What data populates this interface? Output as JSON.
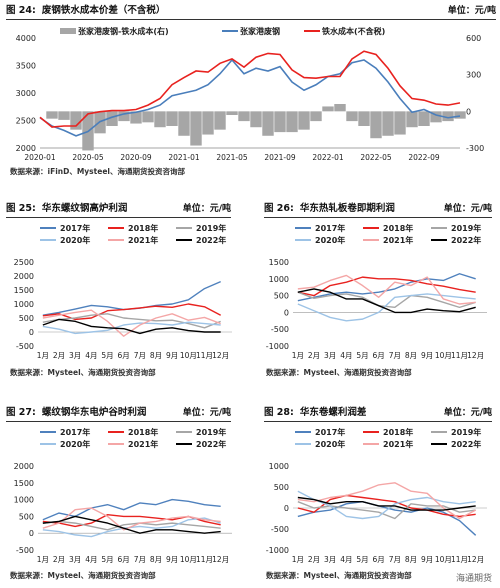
{
  "figures": [
    {
      "num": "图 24:",
      "title": "废钢铁水成本价差（不含税）",
      "unit": "单位：元/吨",
      "source": "数据来源：iFinD、Mysteel、海通期货投资咨询部"
    },
    {
      "num": "图 25:",
      "title": "华东螺纹钢高炉利润",
      "unit": "单位：元/吨",
      "source": "数据来源：Mysteel、海通期货投资咨询部"
    },
    {
      "num": "图 26:",
      "title": "华东热轧板卷即期利润",
      "unit": "单位：元/吨",
      "source": "数据来源：Mysteel、海通期货投资咨询部"
    },
    {
      "num": "图 27:",
      "title": "螺纹钢华东电炉谷时利润",
      "unit": "单位：元/吨",
      "source": "数据来源：Mysteel、海通期货投资咨询部"
    },
    {
      "num": "图 28:",
      "title": "华东卷螺利润差",
      "unit": "单位：元/吨",
      "source": "数据来源：Mysteel、海通期货投资咨询部"
    }
  ],
  "watermark": "海通期货",
  "chart_data": [
    {
      "type": "line",
      "x": [
        "2020-01",
        "2020-02",
        "2020-03",
        "2020-04",
        "2020-05",
        "2020-06",
        "2020-07",
        "2020-08",
        "2020-09",
        "2020-10",
        "2020-11",
        "2020-12",
        "2021-01",
        "2021-02",
        "2021-03",
        "2021-04",
        "2021-05",
        "2021-06",
        "2021-07",
        "2021-08",
        "2021-09",
        "2021-10",
        "2021-11",
        "2021-12",
        "2022-01",
        "2022-02",
        "2022-03",
        "2022-04",
        "2022-05",
        "2022-06",
        "2022-07",
        "2022-08",
        "2022-09",
        "2022-10",
        "2022-11",
        "2022-12"
      ],
      "x_ticks": [
        "2020-01",
        "2020-05",
        "2020-09",
        "2021-01",
        "2021-05",
        "2021-09",
        "2022-01",
        "2022-05",
        "2022-09"
      ],
      "series": [
        {
          "name": "张家港废钢-铁水成本(右)",
          "axis": "right",
          "kind": "area",
          "color": "#a6a6a6",
          "values": [
            0,
            -60,
            -70,
            -150,
            -320,
            -180,
            -120,
            -80,
            -100,
            -90,
            -130,
            -120,
            -200,
            -280,
            -190,
            -150,
            -30,
            -80,
            -130,
            -200,
            -170,
            -170,
            -150,
            -80,
            40,
            60,
            -80,
            -120,
            -220,
            -200,
            -190,
            -130,
            -120,
            -90,
            -80,
            -60
          ]
        },
        {
          "name": "张家港废钢",
          "axis": "left",
          "color": "#4a7ebb",
          "values": [
            2550,
            2400,
            2320,
            2220,
            2300,
            2480,
            2560,
            2620,
            2650,
            2700,
            2780,
            2950,
            3000,
            3050,
            3150,
            3350,
            3600,
            3350,
            3450,
            3400,
            3480,
            3200,
            3050,
            3150,
            3300,
            3350,
            3550,
            3600,
            3450,
            3200,
            2900,
            2650,
            2700,
            2600,
            2550,
            2580
          ]
        },
        {
          "name": "铁水成本(不含税)",
          "axis": "right_line",
          "color": "#e8221f",
          "values": [
            2560,
            2380,
            2400,
            2400,
            2620,
            2660,
            2680,
            2680,
            2700,
            2780,
            2900,
            3150,
            3280,
            3400,
            3380,
            3540,
            3620,
            3470,
            3650,
            3720,
            3700,
            3420,
            3280,
            3270,
            3300,
            3300,
            3620,
            3760,
            3700,
            3450,
            3130,
            2900,
            2870,
            2800,
            2780,
            2820
          ]
        }
      ],
      "ylim_left": [
        2000,
        4000
      ],
      "left_ticks": [
        "2000",
        "2500",
        "3000",
        "3500",
        "4000"
      ],
      "ylim_right": [
        -300,
        600
      ],
      "right_ticks": [
        "-300",
        "0",
        "300",
        "600"
      ]
    },
    {
      "type": "line",
      "categories": [
        "1月",
        "2月",
        "3月",
        "4月",
        "5月",
        "6月",
        "7月",
        "8月",
        "9月",
        "10月",
        "11月",
        "12月"
      ],
      "ylim": [
        -500,
        2500
      ],
      "y_ticks": [
        "-500",
        "0",
        "500",
        "1000",
        "1500",
        "2000",
        "2500"
      ],
      "series": [
        {
          "name": "2017年",
          "color": "#4f81bd",
          "values": [
            600,
            700,
            820,
            950,
            900,
            800,
            850,
            950,
            1000,
            1150,
            1550,
            1800
          ]
        },
        {
          "name": "2018年",
          "color": "#e8221f",
          "values": [
            580,
            650,
            450,
            500,
            760,
            800,
            860,
            920,
            880,
            1000,
            900,
            600
          ]
        },
        {
          "name": "2019年",
          "color": "#a6a6a6",
          "values": [
            350,
            450,
            500,
            600,
            650,
            500,
            450,
            400,
            420,
            300,
            150,
            380
          ]
        },
        {
          "name": "2020年",
          "color": "#9dc3e6",
          "values": [
            200,
            100,
            -50,
            0,
            60,
            250,
            320,
            300,
            250,
            350,
            300,
            250
          ]
        },
        {
          "name": "2021年",
          "color": "#f4a6a6",
          "values": [
            500,
            600,
            700,
            780,
            380,
            -150,
            250,
            500,
            650,
            420,
            520,
            300
          ]
        },
        {
          "name": "2022年",
          "color": "#000000",
          "values": [
            250,
            450,
            380,
            200,
            150,
            120,
            -50,
            100,
            150,
            50,
            0,
            0
          ]
        }
      ]
    },
    {
      "type": "line",
      "categories": [
        "1月",
        "2月",
        "3月",
        "4月",
        "5月",
        "6月",
        "7月",
        "8月",
        "9月",
        "10月",
        "11月",
        "12月"
      ],
      "ylim": [
        -1000,
        1500
      ],
      "y_ticks": [
        "-1000",
        "-500",
        "0",
        "500",
        "1000",
        "1500"
      ],
      "series": [
        {
          "name": "2017年",
          "color": "#4f81bd",
          "values": [
            350,
            450,
            550,
            600,
            550,
            600,
            700,
            900,
            1000,
            950,
            1150,
            1000
          ]
        },
        {
          "name": "2018年",
          "color": "#e8221f",
          "values": [
            600,
            500,
            800,
            900,
            1050,
            1000,
            1000,
            950,
            850,
            780,
            680,
            600
          ]
        },
        {
          "name": "2019年",
          "color": "#a6a6a6",
          "values": [
            600,
            420,
            500,
            550,
            450,
            200,
            150,
            500,
            450,
            300,
            150,
            300
          ]
        },
        {
          "name": "2020年",
          "color": "#9dc3e6",
          "values": [
            250,
            50,
            -150,
            -250,
            -200,
            0,
            450,
            500,
            550,
            500,
            450,
            400
          ]
        },
        {
          "name": "2021年",
          "color": "#f4a6a6",
          "values": [
            700,
            750,
            950,
            1100,
            800,
            450,
            900,
            800,
            1050,
            400,
            250,
            300
          ]
        },
        {
          "name": "2022年",
          "color": "#000000",
          "values": [
            600,
            700,
            600,
            400,
            400,
            200,
            0,
            0,
            100,
            50,
            20,
            150
          ]
        }
      ]
    },
    {
      "type": "line",
      "categories": [
        "1月",
        "2月",
        "3月",
        "4月",
        "5月",
        "6月",
        "7月",
        "8月",
        "9月",
        "10月",
        "11月",
        "12月"
      ],
      "ylim": [
        -500,
        2000
      ],
      "y_ticks": [
        "-500",
        "0",
        "500",
        "1000",
        "1500",
        "2000"
      ],
      "series": [
        {
          "name": "2017年",
          "color": "#4f81bd",
          "values": [
            400,
            600,
            500,
            750,
            850,
            700,
            900,
            850,
            1000,
            950,
            850,
            800
          ]
        },
        {
          "name": "2018年",
          "color": "#e8221f",
          "values": [
            350,
            300,
            200,
            300,
            550,
            500,
            500,
            450,
            400,
            500,
            350,
            250
          ]
        },
        {
          "name": "2019年",
          "color": "#a6a6a6",
          "values": [
            300,
            350,
            300,
            200,
            100,
            250,
            300,
            250,
            300,
            250,
            200,
            150
          ]
        },
        {
          "name": "2020年",
          "color": "#9dc3e6",
          "values": [
            100,
            50,
            -50,
            -100,
            50,
            150,
            200,
            150,
            200,
            400,
            450,
            300
          ]
        },
        {
          "name": "2021年",
          "color": "#f4a6a6",
          "values": [
            150,
            300,
            700,
            750,
            500,
            100,
            300,
            350,
            450,
            500,
            400,
            350
          ]
        },
        {
          "name": "2022年",
          "color": "#000000",
          "values": [
            300,
            350,
            500,
            400,
            300,
            150,
            0,
            100,
            100,
            50,
            0,
            50
          ]
        }
      ]
    },
    {
      "type": "line",
      "categories": [
        "1月",
        "2月",
        "3月",
        "4月",
        "5月",
        "6月",
        "7月",
        "8月",
        "9月",
        "10月",
        "11月",
        "12月"
      ],
      "ylim": [
        -1000,
        1000
      ],
      "y_ticks": [
        "-1000",
        "-500",
        "0",
        "500",
        "1000"
      ],
      "series": [
        {
          "name": "2017年",
          "color": "#4f81bd",
          "values": [
            -200,
            -100,
            -50,
            100,
            150,
            50,
            -50,
            -100,
            0,
            -100,
            -300,
            -650
          ]
        },
        {
          "name": "2018年",
          "color": "#e8221f",
          "values": [
            0,
            -100,
            200,
            300,
            250,
            200,
            150,
            0,
            -50,
            -150,
            -200,
            -150
          ]
        },
        {
          "name": "2019年",
          "color": "#a6a6a6",
          "values": [
            150,
            0,
            50,
            0,
            -50,
            -100,
            -250,
            100,
            50,
            50,
            -100,
            -50
          ]
        },
        {
          "name": "2020年",
          "color": "#9dc3e6",
          "values": [
            400,
            200,
            50,
            -200,
            -250,
            -200,
            100,
            200,
            250,
            150,
            100,
            150
          ]
        },
        {
          "name": "2021年",
          "color": "#f4a6a6",
          "values": [
            200,
            150,
            250,
            300,
            400,
            550,
            600,
            400,
            350,
            0,
            -250,
            -50
          ]
        },
        {
          "name": "2022年",
          "color": "#000000",
          "values": [
            250,
            200,
            100,
            150,
            150,
            50,
            50,
            -50,
            -50,
            -50,
            0,
            50
          ]
        }
      ]
    }
  ]
}
